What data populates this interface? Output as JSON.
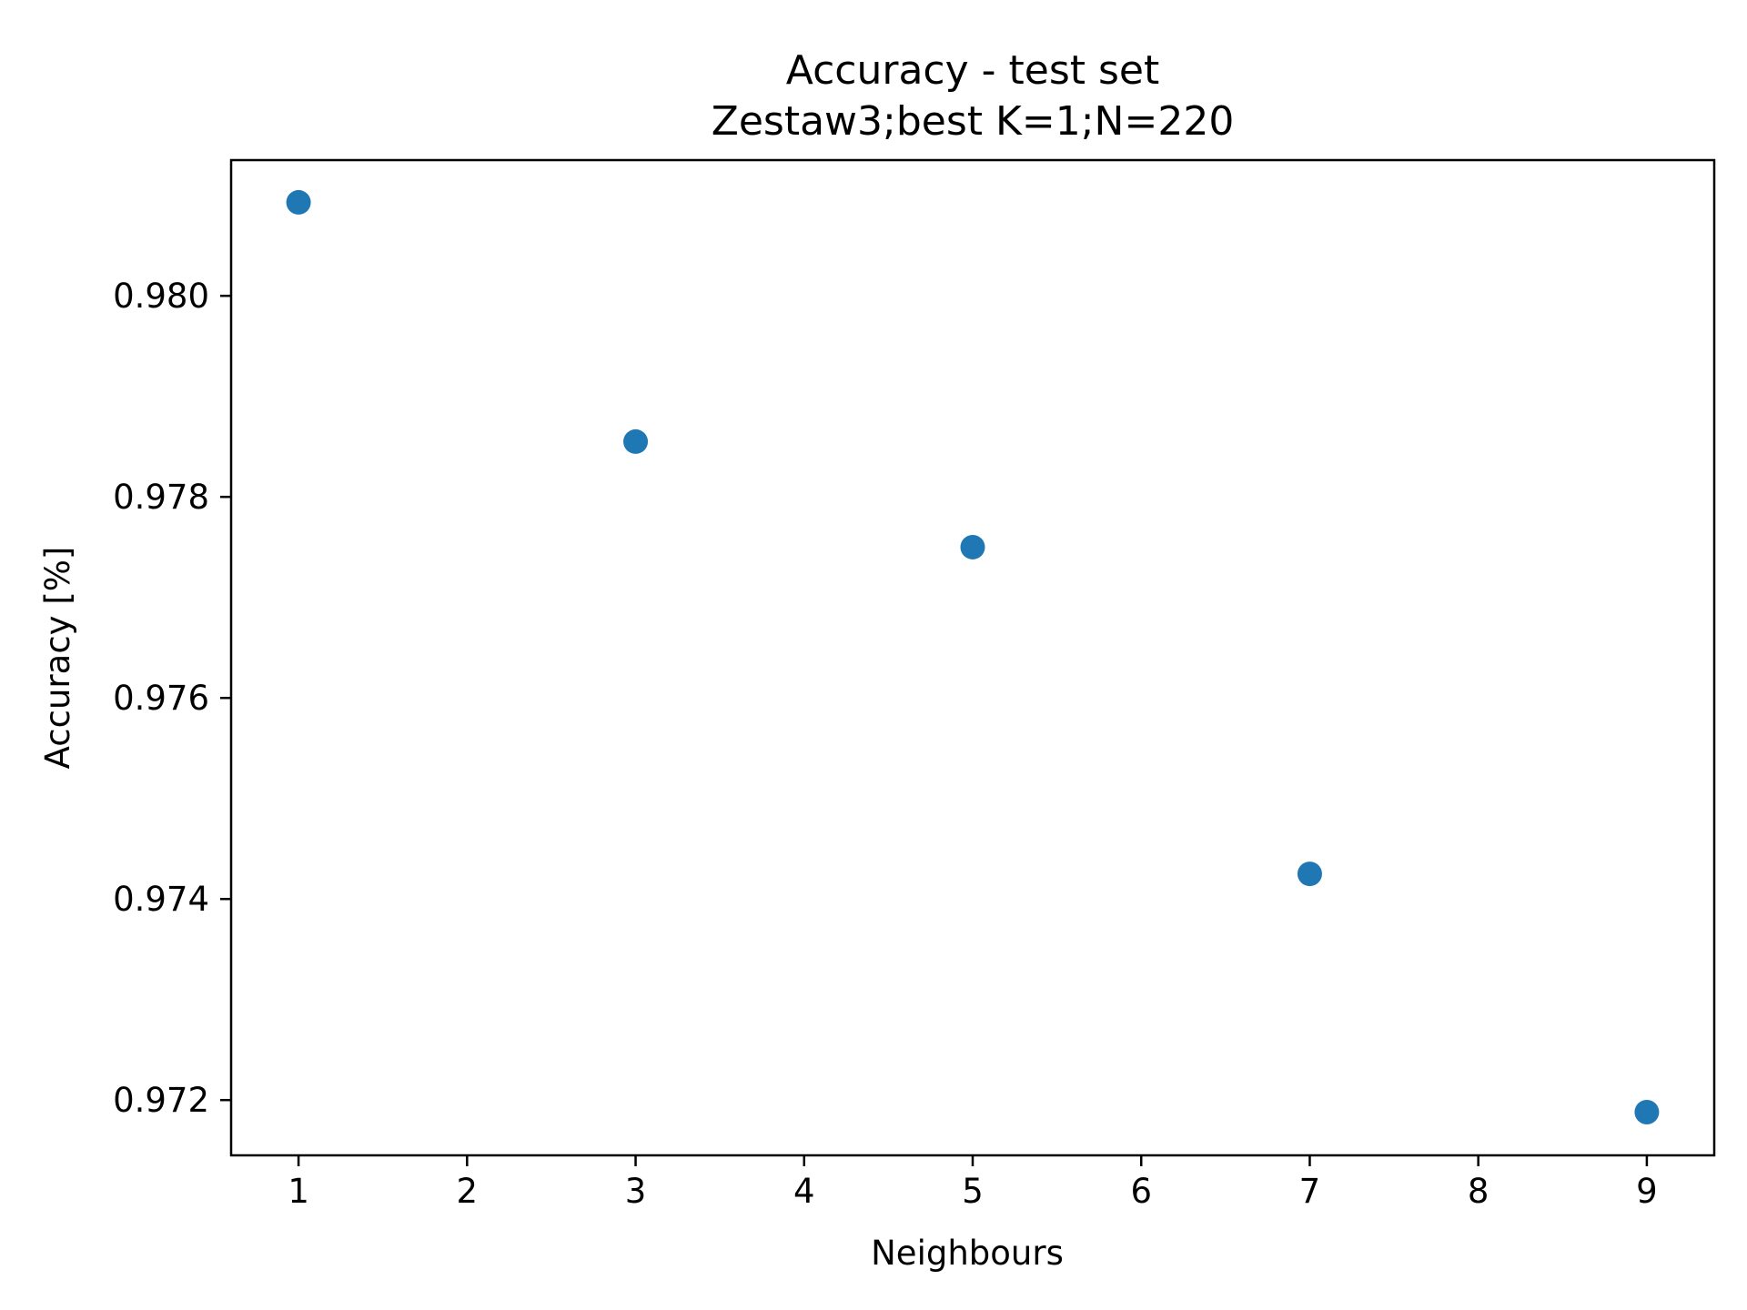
{
  "chart_data": {
    "type": "scatter",
    "title": "Accuracy - test set",
    "subtitle": "Zestaw3;best K=1;N=220",
    "xlabel": "Neighbours",
    "ylabel": "Accuracy [%]",
    "xlim": [
      0.6,
      9.4
    ],
    "ylim": [
      0.97145,
      0.98135
    ],
    "xticks": [
      1,
      2,
      3,
      4,
      5,
      6,
      7,
      8,
      9
    ],
    "yticks": [
      0.972,
      0.974,
      0.976,
      0.978,
      0.98
    ],
    "ytick_labels": [
      "0.972",
      "0.974",
      "0.976",
      "0.978",
      "0.980"
    ],
    "grid": false,
    "series": [
      {
        "color": "#1f77b4",
        "x": [
          1,
          3,
          5,
          7,
          9
        ],
        "y": [
          0.98093,
          0.97855,
          0.9775,
          0.97425,
          0.97188
        ]
      }
    ]
  }
}
